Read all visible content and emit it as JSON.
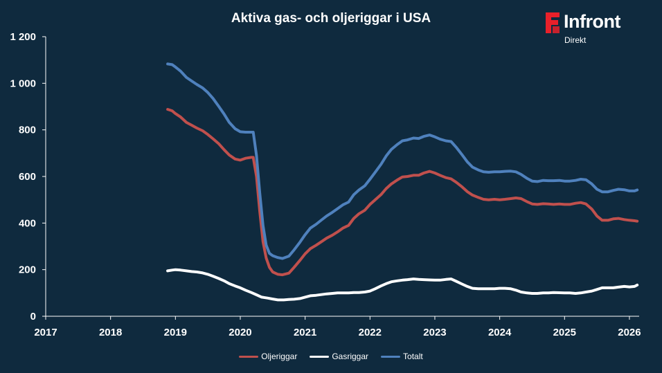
{
  "chart_data": {
    "type": "line",
    "title": "Aktiva gas- och oljeriggar i USA",
    "xlabel": "",
    "ylabel": "",
    "xlim": [
      2017,
      2026.15
    ],
    "ylim": [
      0,
      1200
    ],
    "x_ticks": [
      2017,
      2018,
      2019,
      2020,
      2021,
      2022,
      2023,
      2024,
      2025,
      2026
    ],
    "y_ticks": [
      0,
      200,
      400,
      600,
      800,
      1000,
      1200
    ],
    "y_tick_labels": [
      "0",
      "200",
      "400",
      "600",
      "800",
      "1 000",
      "1 200"
    ],
    "grid": false,
    "legend_position": "bottom",
    "series": [
      {
        "name": "Oljeriggar",
        "color": "#c0504d",
        "points": [
          [
            2018.88,
            888
          ],
          [
            2018.95,
            882
          ],
          [
            2019.0,
            870
          ],
          [
            2019.08,
            855
          ],
          [
            2019.17,
            832
          ],
          [
            2019.25,
            820
          ],
          [
            2019.33,
            808
          ],
          [
            2019.42,
            796
          ],
          [
            2019.5,
            780
          ],
          [
            2019.58,
            762
          ],
          [
            2019.67,
            740
          ],
          [
            2019.75,
            715
          ],
          [
            2019.83,
            692
          ],
          [
            2019.92,
            675
          ],
          [
            2020.0,
            670
          ],
          [
            2020.08,
            678
          ],
          [
            2020.17,
            682
          ],
          [
            2020.2,
            682
          ],
          [
            2020.25,
            600
          ],
          [
            2020.3,
            450
          ],
          [
            2020.35,
            320
          ],
          [
            2020.4,
            250
          ],
          [
            2020.45,
            210
          ],
          [
            2020.5,
            190
          ],
          [
            2020.58,
            180
          ],
          [
            2020.65,
            178
          ],
          [
            2020.75,
            185
          ],
          [
            2020.83,
            210
          ],
          [
            2020.92,
            240
          ],
          [
            2021.0,
            268
          ],
          [
            2021.08,
            290
          ],
          [
            2021.17,
            305
          ],
          [
            2021.25,
            320
          ],
          [
            2021.33,
            335
          ],
          [
            2021.42,
            348
          ],
          [
            2021.5,
            362
          ],
          [
            2021.58,
            378
          ],
          [
            2021.67,
            390
          ],
          [
            2021.75,
            420
          ],
          [
            2021.83,
            440
          ],
          [
            2021.92,
            455
          ],
          [
            2022.0,
            480
          ],
          [
            2022.08,
            500
          ],
          [
            2022.17,
            522
          ],
          [
            2022.25,
            548
          ],
          [
            2022.33,
            568
          ],
          [
            2022.42,
            585
          ],
          [
            2022.5,
            598
          ],
          [
            2022.58,
            600
          ],
          [
            2022.67,
            605
          ],
          [
            2022.75,
            605
          ],
          [
            2022.83,
            615
          ],
          [
            2022.92,
            622
          ],
          [
            2023.0,
            615
          ],
          [
            2023.08,
            605
          ],
          [
            2023.17,
            595
          ],
          [
            2023.25,
            590
          ],
          [
            2023.33,
            575
          ],
          [
            2023.42,
            555
          ],
          [
            2023.5,
            535
          ],
          [
            2023.58,
            520
          ],
          [
            2023.67,
            510
          ],
          [
            2023.75,
            502
          ],
          [
            2023.83,
            500
          ],
          [
            2023.92,
            502
          ],
          [
            2024.0,
            500
          ],
          [
            2024.08,
            502
          ],
          [
            2024.17,
            505
          ],
          [
            2024.25,
            508
          ],
          [
            2024.33,
            505
          ],
          [
            2024.42,
            492
          ],
          [
            2024.5,
            482
          ],
          [
            2024.58,
            480
          ],
          [
            2024.67,
            483
          ],
          [
            2024.75,
            482
          ],
          [
            2024.83,
            480
          ],
          [
            2024.92,
            482
          ],
          [
            2025.0,
            480
          ],
          [
            2025.08,
            480
          ],
          [
            2025.17,
            485
          ],
          [
            2025.25,
            488
          ],
          [
            2025.33,
            482
          ],
          [
            2025.42,
            460
          ],
          [
            2025.5,
            430
          ],
          [
            2025.58,
            412
          ],
          [
            2025.67,
            412
          ],
          [
            2025.75,
            418
          ],
          [
            2025.83,
            420
          ],
          [
            2025.92,
            415
          ],
          [
            2026.0,
            412
          ],
          [
            2026.08,
            410
          ],
          [
            2026.12,
            408
          ]
        ]
      },
      {
        "name": "Gasriggar",
        "color": "#ffffff",
        "points": [
          [
            2018.88,
            195
          ],
          [
            2018.95,
            198
          ],
          [
            2019.0,
            200
          ],
          [
            2019.08,
            198
          ],
          [
            2019.17,
            195
          ],
          [
            2019.25,
            192
          ],
          [
            2019.33,
            190
          ],
          [
            2019.42,
            186
          ],
          [
            2019.5,
            180
          ],
          [
            2019.58,
            172
          ],
          [
            2019.67,
            162
          ],
          [
            2019.75,
            152
          ],
          [
            2019.83,
            140
          ],
          [
            2019.92,
            130
          ],
          [
            2020.0,
            122
          ],
          [
            2020.08,
            112
          ],
          [
            2020.17,
            102
          ],
          [
            2020.25,
            92
          ],
          [
            2020.33,
            82
          ],
          [
            2020.42,
            78
          ],
          [
            2020.5,
            74
          ],
          [
            2020.58,
            70
          ],
          [
            2020.67,
            70
          ],
          [
            2020.75,
            72
          ],
          [
            2020.83,
            73
          ],
          [
            2020.92,
            76
          ],
          [
            2021.0,
            82
          ],
          [
            2021.08,
            88
          ],
          [
            2021.17,
            90
          ],
          [
            2021.25,
            93
          ],
          [
            2021.33,
            96
          ],
          [
            2021.42,
            98
          ],
          [
            2021.5,
            100
          ],
          [
            2021.58,
            100
          ],
          [
            2021.67,
            100
          ],
          [
            2021.75,
            102
          ],
          [
            2021.83,
            102
          ],
          [
            2021.92,
            104
          ],
          [
            2022.0,
            108
          ],
          [
            2022.08,
            118
          ],
          [
            2022.17,
            130
          ],
          [
            2022.25,
            140
          ],
          [
            2022.33,
            148
          ],
          [
            2022.42,
            152
          ],
          [
            2022.5,
            155
          ],
          [
            2022.58,
            157
          ],
          [
            2022.67,
            160
          ],
          [
            2022.75,
            158
          ],
          [
            2022.83,
            157
          ],
          [
            2022.92,
            156
          ],
          [
            2023.0,
            155
          ],
          [
            2023.08,
            155
          ],
          [
            2023.17,
            158
          ],
          [
            2023.25,
            160
          ],
          [
            2023.33,
            150
          ],
          [
            2023.42,
            138
          ],
          [
            2023.5,
            128
          ],
          [
            2023.58,
            120
          ],
          [
            2023.67,
            118
          ],
          [
            2023.75,
            118
          ],
          [
            2023.83,
            118
          ],
          [
            2023.92,
            118
          ],
          [
            2024.0,
            120
          ],
          [
            2024.08,
            120
          ],
          [
            2024.17,
            118
          ],
          [
            2024.25,
            112
          ],
          [
            2024.33,
            104
          ],
          [
            2024.42,
            100
          ],
          [
            2024.5,
            98
          ],
          [
            2024.58,
            98
          ],
          [
            2024.67,
            100
          ],
          [
            2024.75,
            100
          ],
          [
            2024.83,
            102
          ],
          [
            2024.92,
            101
          ],
          [
            2025.0,
            100
          ],
          [
            2025.08,
            100
          ],
          [
            2025.17,
            98
          ],
          [
            2025.25,
            100
          ],
          [
            2025.33,
            104
          ],
          [
            2025.42,
            108
          ],
          [
            2025.5,
            115
          ],
          [
            2025.58,
            122
          ],
          [
            2025.67,
            122
          ],
          [
            2025.75,
            122
          ],
          [
            2025.83,
            125
          ],
          [
            2025.92,
            128
          ],
          [
            2026.0,
            126
          ],
          [
            2026.08,
            128
          ],
          [
            2026.12,
            134
          ]
        ]
      },
      {
        "name": "Totalt",
        "color": "#4f81bd",
        "points": [
          [
            2018.88,
            1083
          ],
          [
            2018.95,
            1080
          ],
          [
            2019.0,
            1070
          ],
          [
            2019.08,
            1052
          ],
          [
            2019.17,
            1025
          ],
          [
            2019.25,
            1010
          ],
          [
            2019.33,
            995
          ],
          [
            2019.42,
            980
          ],
          [
            2019.5,
            960
          ],
          [
            2019.58,
            935
          ],
          [
            2019.67,
            900
          ],
          [
            2019.75,
            868
          ],
          [
            2019.83,
            832
          ],
          [
            2019.92,
            805
          ],
          [
            2020.0,
            792
          ],
          [
            2020.08,
            790
          ],
          [
            2020.17,
            790
          ],
          [
            2020.2,
            790
          ],
          [
            2020.25,
            690
          ],
          [
            2020.3,
            530
          ],
          [
            2020.35,
            390
          ],
          [
            2020.4,
            305
          ],
          [
            2020.45,
            270
          ],
          [
            2020.5,
            260
          ],
          [
            2020.58,
            252
          ],
          [
            2020.65,
            248
          ],
          [
            2020.75,
            258
          ],
          [
            2020.83,
            285
          ],
          [
            2020.92,
            318
          ],
          [
            2021.0,
            350
          ],
          [
            2021.08,
            378
          ],
          [
            2021.17,
            395
          ],
          [
            2021.25,
            413
          ],
          [
            2021.33,
            430
          ],
          [
            2021.42,
            446
          ],
          [
            2021.5,
            462
          ],
          [
            2021.58,
            478
          ],
          [
            2021.67,
            490
          ],
          [
            2021.75,
            522
          ],
          [
            2021.83,
            542
          ],
          [
            2021.92,
            560
          ],
          [
            2022.0,
            588
          ],
          [
            2022.08,
            618
          ],
          [
            2022.17,
            652
          ],
          [
            2022.25,
            688
          ],
          [
            2022.33,
            716
          ],
          [
            2022.42,
            737
          ],
          [
            2022.5,
            753
          ],
          [
            2022.58,
            757
          ],
          [
            2022.67,
            765
          ],
          [
            2022.75,
            763
          ],
          [
            2022.83,
            772
          ],
          [
            2022.92,
            778
          ],
          [
            2023.0,
            770
          ],
          [
            2023.08,
            760
          ],
          [
            2023.17,
            753
          ],
          [
            2023.25,
            750
          ],
          [
            2023.33,
            725
          ],
          [
            2023.42,
            693
          ],
          [
            2023.5,
            663
          ],
          [
            2023.58,
            640
          ],
          [
            2023.67,
            628
          ],
          [
            2023.75,
            620
          ],
          [
            2023.83,
            618
          ],
          [
            2023.92,
            620
          ],
          [
            2024.0,
            620
          ],
          [
            2024.08,
            622
          ],
          [
            2024.17,
            623
          ],
          [
            2024.25,
            620
          ],
          [
            2024.33,
            609
          ],
          [
            2024.42,
            592
          ],
          [
            2024.5,
            580
          ],
          [
            2024.58,
            578
          ],
          [
            2024.67,
            583
          ],
          [
            2024.75,
            582
          ],
          [
            2024.83,
            582
          ],
          [
            2024.92,
            583
          ],
          [
            2025.0,
            580
          ],
          [
            2025.08,
            580
          ],
          [
            2025.17,
            583
          ],
          [
            2025.25,
            588
          ],
          [
            2025.33,
            586
          ],
          [
            2025.42,
            568
          ],
          [
            2025.5,
            545
          ],
          [
            2025.58,
            534
          ],
          [
            2025.67,
            534
          ],
          [
            2025.75,
            540
          ],
          [
            2025.83,
            545
          ],
          [
            2025.92,
            543
          ],
          [
            2026.0,
            538
          ],
          [
            2026.08,
            538
          ],
          [
            2026.12,
            542
          ]
        ]
      }
    ]
  },
  "brand": {
    "name": "Infront",
    "subtitle": "Direkt",
    "mark_color": "#e8202a"
  },
  "colors": {
    "background": "#0f2a3e",
    "axis": "#ffffff"
  }
}
